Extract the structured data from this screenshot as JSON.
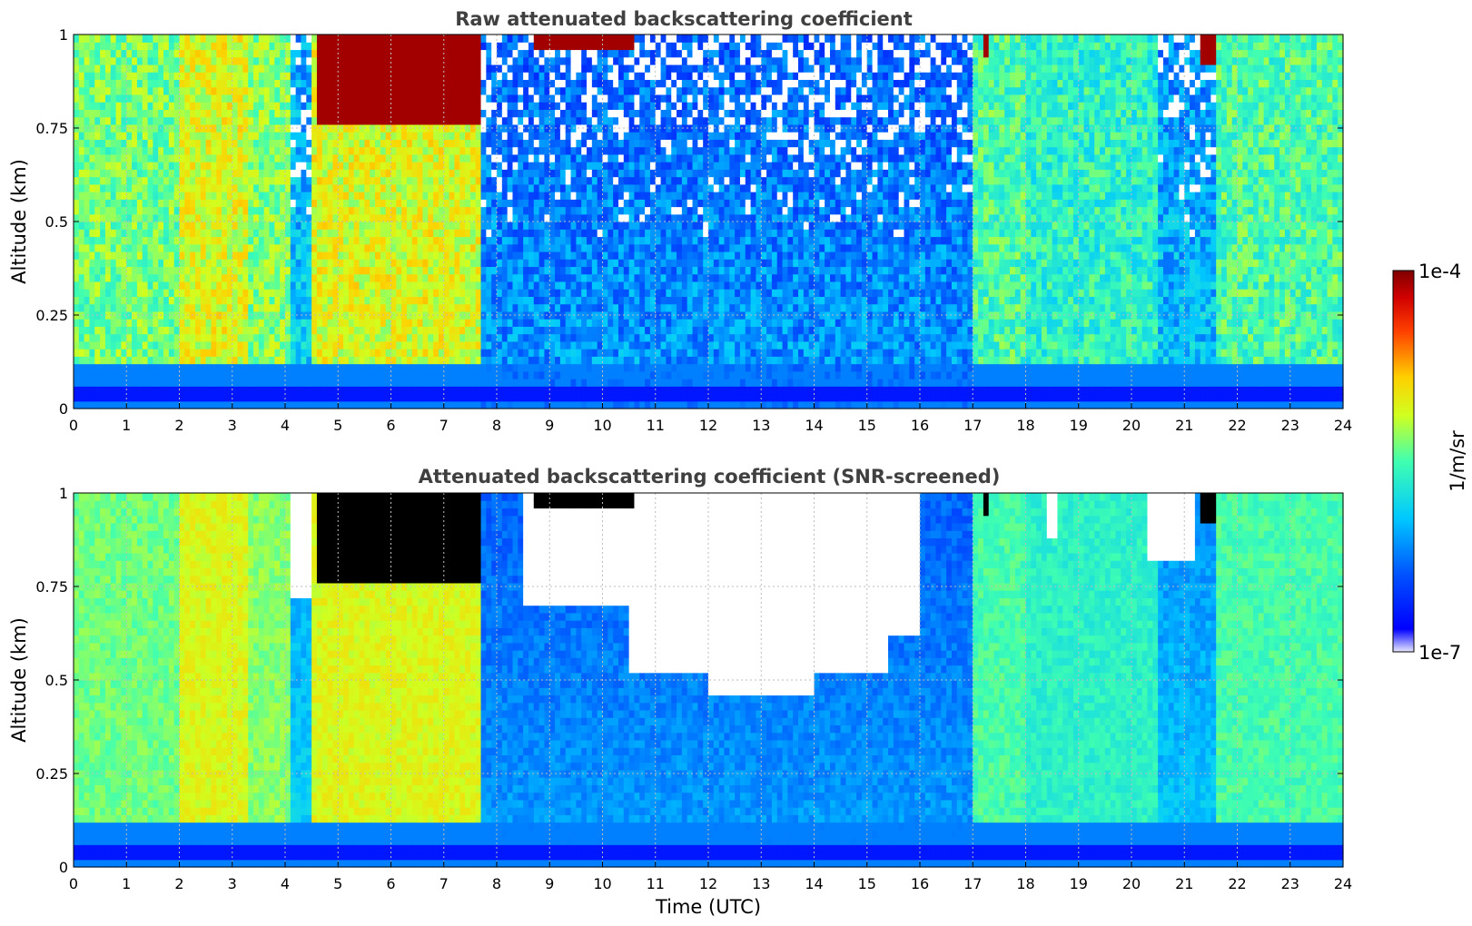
{
  "chart_data": [
    {
      "type": "heatmap",
      "title": "Raw attenuated backscattering coefficient",
      "xlabel": "",
      "ylabel": "Altitude (km)",
      "xlim": [
        0,
        24
      ],
      "ylim": [
        0,
        1
      ],
      "x_ticks": [
        "0",
        "1",
        "2",
        "3",
        "4",
        "5",
        "6",
        "7",
        "8",
        "9",
        "10",
        "11",
        "12",
        "13",
        "14",
        "15",
        "16",
        "17",
        "18",
        "19",
        "20",
        "21",
        "22",
        "23",
        "24"
      ],
      "y_ticks": [
        "0",
        "0.25",
        "0.5",
        "0.75",
        "1"
      ],
      "grid": true,
      "screened": false,
      "colorbar": {
        "label": "1/m/sr",
        "min_label": "1e-7",
        "max_label": "1e-4",
        "scale": "log",
        "colormap": "jet"
      },
      "bands": [
        {
          "x": [
            0,
            2
          ],
          "level": 0.54
        },
        {
          "x": [
            2,
            3.3
          ],
          "level": 0.64
        },
        {
          "x": [
            3.3,
            4.1
          ],
          "level": 0.56
        },
        {
          "x": [
            4.1,
            4.5
          ],
          "level": 0.38
        },
        {
          "x": [
            4.5,
            7.75
          ],
          "level": 0.64
        },
        {
          "x": [
            7.75,
            17.0
          ],
          "level": 0.3
        },
        {
          "x": [
            17.0,
            18.0
          ],
          "level": 0.5
        },
        {
          "x": [
            18.0,
            20.5
          ],
          "level": 0.46
        },
        {
          "x": [
            20.5,
            21.6
          ],
          "level": 0.36
        },
        {
          "x": [
            21.6,
            24.0
          ],
          "level": 0.5
        }
      ],
      "high_cloud_segments": [
        {
          "x": [
            4.6,
            7.7
          ],
          "base_km": 0.75,
          "level": 0.97
        },
        {
          "x": [
            8.7,
            10.6
          ],
          "base_km": 0.95,
          "level": 0.97
        },
        {
          "x": [
            17.2,
            17.3
          ],
          "base_km": 0.93,
          "level": 0.97
        },
        {
          "x": [
            21.3,
            21.6
          ],
          "base_km": 0.92,
          "level": 0.97
        }
      ],
      "near_surface_layer_km": 0.04
    },
    {
      "type": "heatmap",
      "title": "Attenuated backscattering coefficient (SNR-screened)",
      "xlabel": "Time (UTC)",
      "ylabel": "Altitude (km)",
      "xlim": [
        0,
        24
      ],
      "ylim": [
        0,
        1
      ],
      "x_ticks": [
        "0",
        "1",
        "2",
        "3",
        "4",
        "5",
        "6",
        "7",
        "8",
        "9",
        "10",
        "11",
        "12",
        "13",
        "14",
        "15",
        "16",
        "17",
        "18",
        "19",
        "20",
        "21",
        "22",
        "23",
        "24"
      ],
      "y_ticks": [
        "0",
        "0.25",
        "0.5",
        "0.75",
        "1"
      ],
      "grid": true,
      "screened": true,
      "masked_region_base_km": [
        {
          "x": [
            4.1,
            4.5
          ],
          "base_km": 0.72
        },
        {
          "x": [
            8.5,
            10.5
          ],
          "base_km": 0.7
        },
        {
          "x": [
            10.5,
            12.0
          ],
          "base_km": 0.52
        },
        {
          "x": [
            12.0,
            14.0
          ],
          "base_km": 0.45
        },
        {
          "x": [
            14.0,
            15.4
          ],
          "base_km": 0.52
        },
        {
          "x": [
            15.4,
            16.0
          ],
          "base_km": 0.62
        },
        {
          "x": [
            18.4,
            18.6
          ],
          "base_km": 0.88
        },
        {
          "x": [
            20.3,
            21.2
          ],
          "base_km": 0.82
        }
      ],
      "high_cloud_color": "#000000"
    }
  ]
}
